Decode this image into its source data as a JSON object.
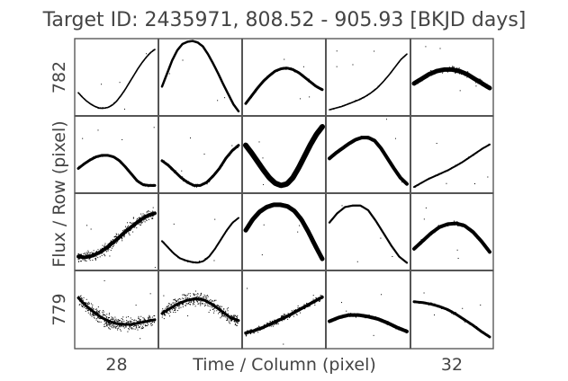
{
  "chart_data": {
    "type": "scatter",
    "title": "Target ID: 2435971, 808.52 - 905.93 [BKJD days]",
    "xlabel": "Time / Column (pixel)",
    "ylabel": "Flux / Row (pixel)",
    "col_tick_labels": [
      "28",
      "",
      "",
      "",
      "32"
    ],
    "row_tick_labels": [
      "782",
      "",
      "",
      "779"
    ],
    "grid": {
      "rows": 4,
      "cols": 5
    },
    "panels": [
      [
        {
          "row": 0,
          "col": 0,
          "noise": 0.012,
          "band": 1.6,
          "y": [
            0.3,
            0.24,
            0.19,
            0.15,
            0.12,
            0.1,
            0.1,
            0.11,
            0.14,
            0.19,
            0.26,
            0.34,
            0.43,
            0.52,
            0.61,
            0.69,
            0.76,
            0.82,
            0.86
          ]
        },
        {
          "row": 0,
          "col": 1,
          "noise": 0.008,
          "band": 2.5,
          "y": [
            0.38,
            0.55,
            0.72,
            0.85,
            0.93,
            0.96,
            0.97,
            0.95,
            0.9,
            0.8,
            0.68,
            0.55,
            0.41,
            0.28,
            0.15,
            0.06
          ]
        },
        {
          "row": 0,
          "col": 2,
          "noise": 0.03,
          "band": 3.0,
          "y": [
            0.16,
            0.26,
            0.36,
            0.45,
            0.52,
            0.58,
            0.61,
            0.62,
            0.6,
            0.56,
            0.5,
            0.44,
            0.38,
            0.34
          ]
        },
        {
          "row": 0,
          "col": 3,
          "noise": 0.012,
          "band": 1.6,
          "y": [
            0.08,
            0.1,
            0.12,
            0.15,
            0.18,
            0.21,
            0.25,
            0.3,
            0.36,
            0.44,
            0.53,
            0.63,
            0.73,
            0.8
          ]
        },
        {
          "row": 0,
          "col": 4,
          "noise": 0.06,
          "band": 5.0,
          "y": [
            0.42,
            0.48,
            0.54,
            0.58,
            0.6,
            0.6,
            0.58,
            0.54,
            0.48,
            0.42,
            0.36
          ]
        }
      ],
      [
        {
          "row": 1,
          "col": 0,
          "noise": 0.03,
          "band": 3.0,
          "y": [
            0.32,
            0.38,
            0.43,
            0.47,
            0.49,
            0.49,
            0.47,
            0.42,
            0.34,
            0.25,
            0.16,
            0.11,
            0.1,
            0.1
          ]
        },
        {
          "row": 1,
          "col": 1,
          "noise": 0.035,
          "band": 3.0,
          "y": [
            0.42,
            0.36,
            0.28,
            0.2,
            0.14,
            0.1,
            0.1,
            0.14,
            0.22,
            0.32,
            0.45,
            0.55,
            0.62
          ]
        },
        {
          "row": 1,
          "col": 2,
          "noise": 0.02,
          "band": 6.0,
          "y": [
            0.62,
            0.52,
            0.41,
            0.3,
            0.2,
            0.13,
            0.1,
            0.12,
            0.2,
            0.33,
            0.48,
            0.63,
            0.76,
            0.86
          ]
        },
        {
          "row": 1,
          "col": 3,
          "noise": 0.03,
          "band": 4.0,
          "y": [
            0.45,
            0.52,
            0.58,
            0.64,
            0.69,
            0.72,
            0.72,
            0.68,
            0.58,
            0.45,
            0.32,
            0.2,
            0.12
          ]
        },
        {
          "row": 1,
          "col": 4,
          "noise": 0.015,
          "band": 2.0,
          "y": [
            0.08,
            0.13,
            0.18,
            0.22,
            0.26,
            0.3,
            0.35,
            0.4,
            0.46,
            0.52,
            0.58,
            0.63
          ]
        }
      ],
      [
        {
          "row": 2,
          "col": 0,
          "noise": 0.12,
          "band": 4.0,
          "y": [
            0.18,
            0.17,
            0.19,
            0.23,
            0.29,
            0.36,
            0.44,
            0.52,
            0.59,
            0.66,
            0.71,
            0.74
          ]
        },
        {
          "row": 2,
          "col": 1,
          "noise": 0.02,
          "band": 2.0,
          "y": [
            0.38,
            0.3,
            0.22,
            0.16,
            0.13,
            0.11,
            0.1,
            0.12,
            0.18,
            0.28,
            0.4,
            0.52,
            0.62,
            0.68
          ]
        },
        {
          "row": 2,
          "col": 2,
          "noise": 0.015,
          "band": 5.0,
          "y": [
            0.52,
            0.66,
            0.76,
            0.82,
            0.85,
            0.85,
            0.83,
            0.77,
            0.66,
            0.5,
            0.32,
            0.15
          ]
        },
        {
          "row": 2,
          "col": 3,
          "noise": 0.01,
          "band": 2.2,
          "y": [
            0.62,
            0.74,
            0.82,
            0.84,
            0.84,
            0.78,
            0.64,
            0.48,
            0.32,
            0.18,
            0.1
          ]
        },
        {
          "row": 2,
          "col": 4,
          "noise": 0.04,
          "band": 4.0,
          "y": [
            0.28,
            0.38,
            0.48,
            0.56,
            0.6,
            0.61,
            0.58,
            0.5,
            0.38,
            0.24
          ]
        }
      ],
      [
        {
          "row": 3,
          "col": 0,
          "noise": 0.15,
          "band": 3.0,
          "y": [
            0.65,
            0.55,
            0.47,
            0.4,
            0.35,
            0.32,
            0.31,
            0.31,
            0.33,
            0.35,
            0.37
          ]
        },
        {
          "row": 3,
          "col": 1,
          "noise": 0.14,
          "band": 3.0,
          "y": [
            0.45,
            0.52,
            0.58,
            0.62,
            0.64,
            0.62,
            0.56,
            0.48,
            0.4,
            0.36
          ]
        },
        {
          "row": 3,
          "col": 2,
          "noise": 0.07,
          "band": 3.5,
          "y": [
            0.2,
            0.23,
            0.27,
            0.32,
            0.37,
            0.42,
            0.48,
            0.54,
            0.6,
            0.66
          ]
        },
        {
          "row": 3,
          "col": 3,
          "noise": 0.04,
          "band": 4.0,
          "y": [
            0.35,
            0.4,
            0.43,
            0.43,
            0.41,
            0.38,
            0.33,
            0.27,
            0.22
          ]
        },
        {
          "row": 3,
          "col": 4,
          "noise": 0.03,
          "band": 3.0,
          "y": [
            0.6,
            0.59,
            0.57,
            0.54,
            0.5,
            0.44,
            0.37,
            0.3,
            0.22,
            0.15
          ]
        }
      ]
    ]
  }
}
